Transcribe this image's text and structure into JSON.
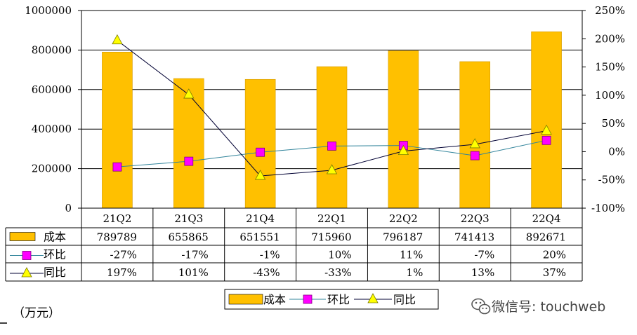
{
  "chart_data": {
    "type": "bar",
    "categories": [
      "21Q2",
      "21Q3",
      "21Q4",
      "22Q1",
      "22Q2",
      "22Q3",
      "22Q4"
    ],
    "series": [
      {
        "name": "成本",
        "kind": "bar",
        "axis": "left",
        "values": [
          789789,
          655865,
          651551,
          715960,
          796187,
          741413,
          892671
        ],
        "color": "#FFC000"
      },
      {
        "name": "环比",
        "kind": "line",
        "axis": "right",
        "values": [
          -27,
          -17,
          -1,
          10,
          11,
          -7,
          20
        ],
        "color": "#FF00FF",
        "line_color": "#31849B"
      },
      {
        "name": "同比",
        "kind": "line",
        "axis": "right",
        "values": [
          197,
          101,
          -43,
          -33,
          1,
          13,
          37
        ],
        "color": "#FFFF00",
        "line_color": "#000033"
      }
    ],
    "ylim": [
      0,
      1000000
    ],
    "yticks": [
      "1000000",
      "800000",
      "600000",
      "400000",
      "200000",
      "0"
    ],
    "y2lim": [
      -100,
      250
    ],
    "y2ticks": [
      "250%",
      "200%",
      "150%",
      "100%",
      "50%",
      "0%",
      "-50%",
      "-100%"
    ],
    "table": {
      "rows": [
        {
          "label": "成本",
          "cells": [
            "789789",
            "655865",
            "651551",
            "715960",
            "796187",
            "741413",
            "892671"
          ]
        },
        {
          "label": "环比",
          "cells": [
            "-27%",
            "-17%",
            "-1%",
            "10%",
            "11%",
            "-7%",
            "20%"
          ]
        },
        {
          "label": "同比",
          "cells": [
            "197%",
            "101%",
            "-43%",
            "-33%",
            "1%",
            "13%",
            "37%"
          ]
        }
      ]
    },
    "legend": [
      "成本",
      "环比",
      "同比"
    ],
    "legend_position": "bottom",
    "grid": true,
    "unit_note": "（万元）"
  },
  "watermark": "微信号: touchweb"
}
